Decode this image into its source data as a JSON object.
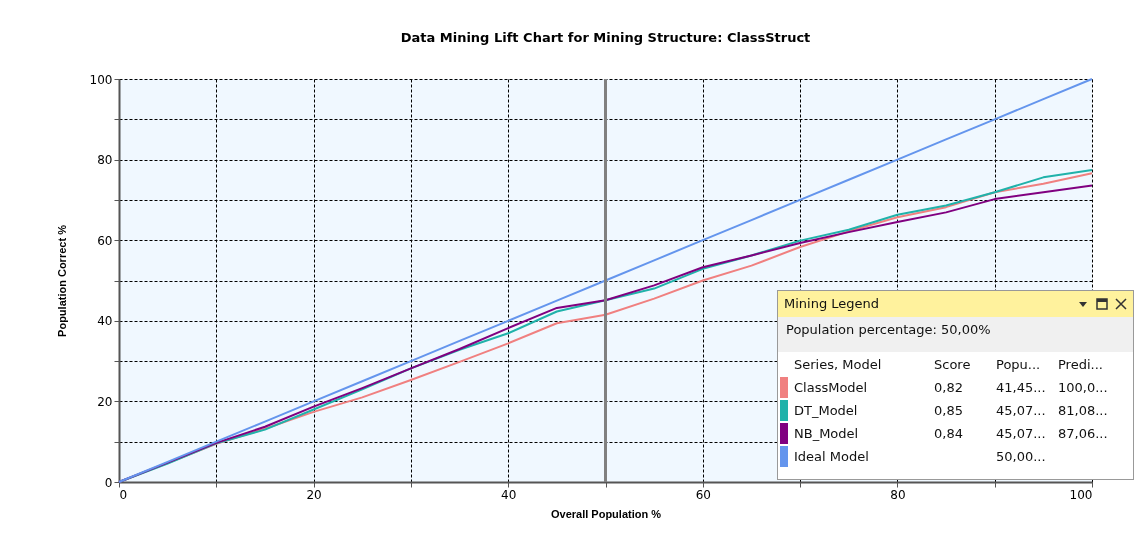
{
  "chart_data": {
    "type": "line",
    "title": "Data Mining Lift Chart for Mining Structure: ClassStruct",
    "xlabel": "Overall Population %",
    "ylabel": "Population Correct %",
    "x": [
      0,
      5,
      10,
      15,
      20,
      25,
      30,
      35,
      40,
      45,
      50,
      55,
      60,
      65,
      70,
      75,
      80,
      85,
      90,
      95,
      100
    ],
    "series": [
      {
        "name": "ClassModel",
        "color": "#f08080",
        "values": [
          0,
          4.7,
          9.5,
          13.2,
          17.4,
          21.0,
          25.3,
          29.8,
          34.4,
          39.4,
          41.5,
          45.5,
          50.0,
          53.7,
          58.3,
          62.2,
          65.7,
          68.2,
          71.9,
          74.0,
          76.6
        ]
      },
      {
        "name": "DT_Model",
        "color": "#20b2aa",
        "values": [
          0,
          4.6,
          9.6,
          13.0,
          18.0,
          23.0,
          28.2,
          32.8,
          36.9,
          42.3,
          45.1,
          48.0,
          52.9,
          56.2,
          59.9,
          62.6,
          66.3,
          68.6,
          71.9,
          75.6,
          77.4
        ]
      },
      {
        "name": "NB_Model",
        "color": "#800080",
        "values": [
          0,
          4.8,
          9.7,
          13.7,
          18.7,
          23.3,
          28.2,
          33.0,
          38.2,
          43.2,
          45.1,
          48.8,
          53.3,
          56.2,
          59.3,
          62.0,
          64.5,
          66.9,
          70.2,
          71.9,
          73.6
        ]
      },
      {
        "name": "Ideal Model",
        "color": "#6495ed",
        "values": [
          0,
          5,
          10,
          15,
          20,
          25,
          30,
          35,
          40,
          45,
          50,
          55,
          60,
          65,
          70,
          75,
          80,
          85,
          90,
          95,
          100
        ]
      }
    ],
    "xlim": [
      0,
      100
    ],
    "ylim": [
      0,
      100
    ],
    "xticks": [
      0,
      {
        "value": 10,
        "label": null
      },
      20,
      {
        "value": 30,
        "label": null
      },
      40,
      {
        "value": 50,
        "label": null
      },
      60,
      {
        "value": 70,
        "label": null
      },
      80,
      {
        "value": 90,
        "label": null
      },
      100
    ],
    "yticks": [
      0,
      {
        "value": 10,
        "label": null
      },
      20,
      {
        "value": 30,
        "label": null
      },
      40,
      {
        "value": 50,
        "label": null
      },
      60,
      {
        "value": 70,
        "label": null
      },
      80,
      {
        "value": 90,
        "label": null
      },
      100
    ],
    "grid": true,
    "legend": "bottom right",
    "marker": "none",
    "line_style": "solid",
    "ref_lines": [
      {
        "axis": "x",
        "value": 50,
        "color": "#808080"
      }
    ],
    "annotations": [
      "Mining Legend",
      "Population percentage: 50,00%",
      "Series, Model",
      "Score",
      "Popu...",
      "Predi...",
      "0,82",
      "41,45...",
      "100,0...",
      "0,85",
      "45,07...",
      "81,08...",
      "0,84",
      "45,07...",
      "87,06...",
      "50,00..."
    ]
  }
}
